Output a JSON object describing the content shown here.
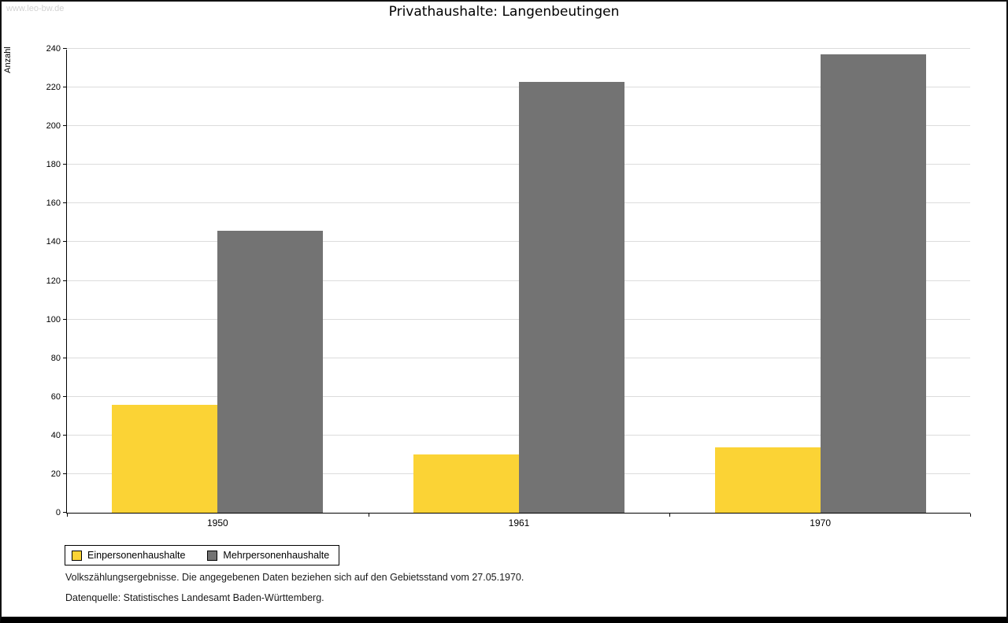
{
  "watermark": "www.leo-bw.de",
  "title": "Privathaushalte: Langenbeutingen",
  "chart_data": {
    "type": "bar",
    "title": "Privathaushalte: Langenbeutingen",
    "categories": [
      "1950",
      "1961",
      "1970"
    ],
    "series": [
      {
        "name": "Einpersonenhaushalte",
        "color": "#fbd335",
        "values": [
          56,
          30,
          34
        ]
      },
      {
        "name": "Mehrpersonenhaushalte",
        "color": "#737373",
        "values": [
          146,
          223,
          237
        ]
      }
    ],
    "xlabel": "",
    "ylabel": "Anzahl",
    "ylim": [
      0,
      240
    ],
    "ytick_step": 20,
    "grid": true,
    "legend_position": "bottom-left"
  },
  "footnotes": [
    "Volkszählungsergebnisse. Die angegebenen Daten beziehen sich auf den Gebietsstand vom 27.05.1970.",
    "Datenquelle: Statistisches Landesamt Baden-Württemberg."
  ]
}
